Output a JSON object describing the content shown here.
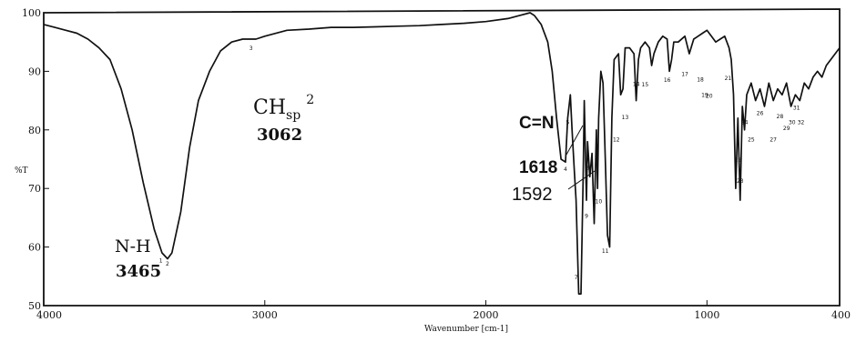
{
  "chart_data": {
    "type": "line",
    "xlabel": "Wavenumber [cm-1]",
    "ylabel": "%T",
    "xlim": [
      4000,
      400
    ],
    "ylim": [
      50,
      100
    ],
    "x_ticks": [
      "4000",
      "3000",
      "2000",
      "1000",
      "400"
    ],
    "y_ticks": [
      "50",
      "60",
      "70",
      "80",
      "90",
      "100"
    ],
    "series": [
      {
        "x": [
          4000,
          3950,
          3900,
          3850,
          3800,
          3750,
          3700,
          3650,
          3600,
          3550,
          3500,
          3465,
          3440,
          3420,
          3380,
          3340,
          3300,
          3250,
          3200,
          3150,
          3100,
          3062,
          3040,
          3000,
          2900,
          2800,
          2700,
          2600,
          2500,
          2400,
          2300,
          2200,
          2100,
          2000,
          1900,
          1850,
          1800,
          1780,
          1750,
          1720,
          1700,
          1680,
          1660,
          1640,
          1630,
          1618,
          1610,
          1600,
          1592,
          1580,
          1570,
          1560,
          1555,
          1545,
          1540,
          1530,
          1520,
          1510,
          1500,
          1495,
          1490,
          1480,
          1470,
          1460,
          1450,
          1440,
          1430,
          1420,
          1400,
          1390,
          1380,
          1370,
          1350,
          1330,
          1320,
          1310,
          1300,
          1280,
          1260,
          1250,
          1240,
          1220,
          1200,
          1180,
          1170,
          1160,
          1150,
          1130,
          1100,
          1080,
          1060,
          1040,
          1020,
          1000,
          980,
          960,
          940,
          920,
          900,
          890,
          880,
          870,
          860,
          850,
          840,
          830,
          820,
          800,
          780,
          760,
          740,
          730,
          720,
          700,
          680,
          660,
          640,
          620,
          600,
          580,
          560,
          540,
          520,
          500,
          480,
          460,
          440,
          420,
          400
        ],
        "y": [
          98,
          97.5,
          97,
          96.5,
          95.5,
          94,
          92,
          87,
          80,
          71,
          63,
          59,
          58,
          59,
          66,
          77,
          85,
          90,
          93.5,
          95,
          95.5,
          95.5,
          95.5,
          96,
          97,
          97.2,
          97.5,
          97.5,
          97.6,
          97.7,
          97.8,
          98,
          98.2,
          98.5,
          99,
          99.5,
          100,
          99.5,
          98,
          95,
          90,
          82,
          75,
          74.5,
          82,
          86,
          80,
          73,
          68,
          52,
          52,
          72,
          85,
          68,
          78,
          72,
          76,
          64,
          80,
          70,
          82,
          90,
          88,
          75,
          62,
          60,
          82,
          92,
          93,
          86,
          87,
          94,
          94,
          93,
          85,
          92,
          94,
          95,
          94,
          91,
          93,
          95,
          96,
          95.5,
          90,
          92,
          95,
          95,
          96,
          93,
          95.5,
          96,
          96.5,
          97,
          96,
          95,
          95.5,
          96,
          94,
          92,
          86,
          70,
          82,
          68,
          84,
          80,
          86,
          88,
          85,
          87,
          84,
          86,
          88,
          85,
          87,
          86,
          88,
          84,
          86,
          85,
          88,
          87,
          89,
          90,
          89,
          91,
          92,
          93,
          94
        ]
      }
    ],
    "annotations": [
      {
        "label": "N-H",
        "value": "3465"
      },
      {
        "label": "CH",
        "subscript": "sp",
        "superscript": "2",
        "value": "3062"
      },
      {
        "label": "C=N",
        "value": "1618"
      },
      {
        "label": "",
        "value": "1592"
      }
    ],
    "peak_numbers": [
      {
        "n": "1",
        "x": 3470,
        "y": 57.4
      },
      {
        "n": "2",
        "x": 3440,
        "y": 56.8
      },
      {
        "n": "3",
        "x": 3062,
        "y": 93.6
      },
      {
        "n": "5",
        "x": 1630,
        "y": 81
      },
      {
        "n": "4",
        "x": 1640,
        "y": 73
      },
      {
        "n": "7",
        "x": 1592,
        "y": 54.5
      },
      {
        "n": "8",
        "x": 1540,
        "y": 73.2
      },
      {
        "n": "9",
        "x": 1545,
        "y": 65
      },
      {
        "n": "10",
        "x": 1490,
        "y": 67.5
      },
      {
        "n": "11",
        "x": 1460,
        "y": 59
      },
      {
        "n": "12",
        "x": 1410,
        "y": 78
      },
      {
        "n": "13",
        "x": 1370,
        "y": 81.8
      },
      {
        "n": "14",
        "x": 1320,
        "y": 87.5
      },
      {
        "n": "15",
        "x": 1280,
        "y": 87.4
      },
      {
        "n": "16",
        "x": 1180,
        "y": 88.2
      },
      {
        "n": "17",
        "x": 1100,
        "y": 89.2
      },
      {
        "n": "18",
        "x": 1030,
        "y": 88.3
      },
      {
        "n": "19",
        "x": 1010,
        "y": 85.6
      },
      {
        "n": "20",
        "x": 990,
        "y": 85.5
      },
      {
        "n": "21",
        "x": 905,
        "y": 88.5
      },
      {
        "n": "22",
        "x": 860,
        "y": 74.5
      },
      {
        "n": "23",
        "x": 850,
        "y": 71
      },
      {
        "n": "24",
        "x": 830,
        "y": 81
      },
      {
        "n": "25",
        "x": 800,
        "y": 78
      },
      {
        "n": "26",
        "x": 760,
        "y": 82.5
      },
      {
        "n": "27",
        "x": 700,
        "y": 78
      },
      {
        "n": "28",
        "x": 670,
        "y": 82
      },
      {
        "n": "29",
        "x": 640,
        "y": 80
      },
      {
        "n": "30",
        "x": 615,
        "y": 81
      },
      {
        "n": "31",
        "x": 595,
        "y": 83.5
      },
      {
        "n": "32",
        "x": 575,
        "y": 81
      }
    ]
  }
}
